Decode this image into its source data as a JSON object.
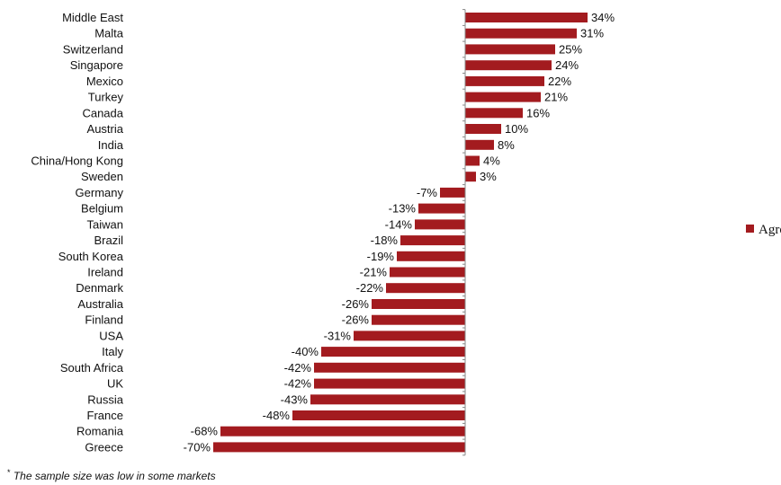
{
  "chart_data": {
    "type": "bar",
    "orientation": "horizontal",
    "categories": [
      "Middle East",
      "Malta",
      "Switzerland",
      "Singapore",
      "Mexico",
      "Turkey",
      "Canada",
      "Austria",
      "India",
      "China/Hong Kong",
      "Sweden",
      "Germany",
      "Belgium",
      "Taiwan",
      "Brazil",
      "South Korea",
      "Ireland",
      "Denmark",
      "Australia",
      "Finland",
      "USA",
      "Italy",
      "South Africa",
      "UK",
      "Russia",
      "France",
      "Romania",
      "Greece"
    ],
    "series": [
      {
        "name": "Agree",
        "color": "#a31b1f",
        "values": [
          34,
          31,
          25,
          24,
          22,
          21,
          16,
          10,
          8,
          4,
          3,
          -7,
          -13,
          -14,
          -18,
          -19,
          -21,
          -22,
          -26,
          -26,
          -31,
          -40,
          -42,
          -42,
          -43,
          -48,
          -68,
          -70
        ],
        "labels": [
          "34%",
          "31%",
          "25%",
          "24%",
          "22%",
          "21%",
          "16%",
          "10%",
          "8%",
          "4%",
          "3%",
          "-7%",
          "-13%",
          "-14%",
          "-18%",
          "-19%",
          "-21%",
          "-22%",
          "-26%",
          "-26%",
          "-31%",
          "-40%",
          "-42%",
          "-42%",
          "-43%",
          "-48%",
          "-68%",
          "-70%"
        ]
      }
    ],
    "legend": {
      "position": "right",
      "entries": [
        "Agree"
      ]
    },
    "grid": false,
    "footnote": {
      "marker": "*",
      "text": " The sample size was low in some markets"
    }
  }
}
